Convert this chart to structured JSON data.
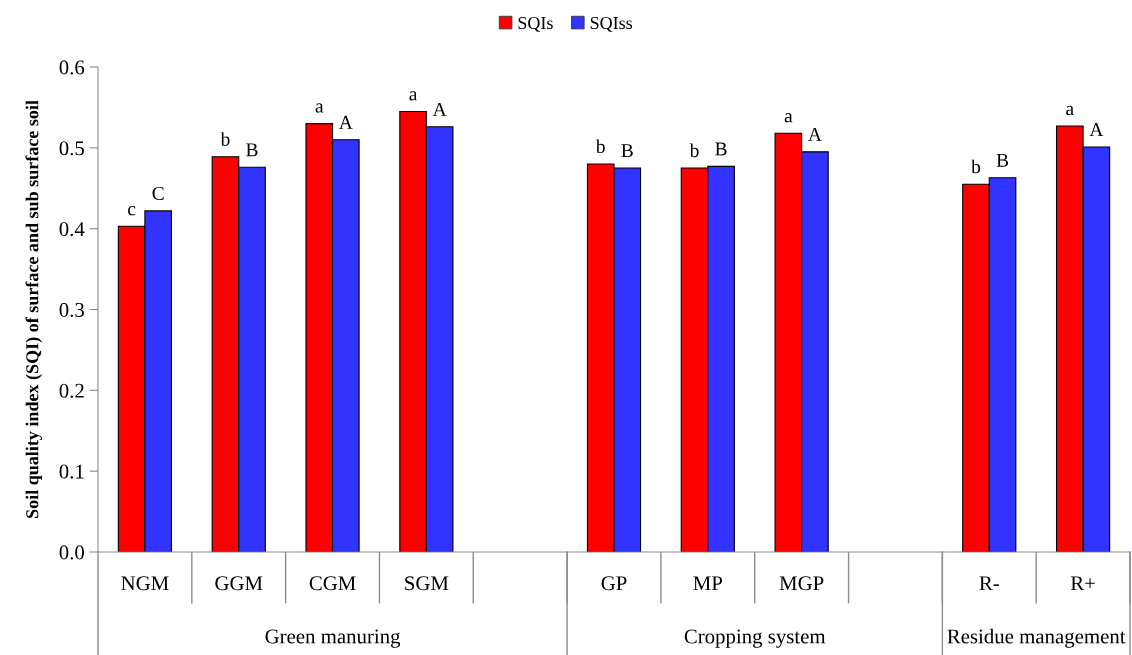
{
  "chart_data": {
    "type": "bar",
    "ylabel": "Soil quality index (SQI) of surface and sub surface soil",
    "categories": [
      "NGM",
      "GGM",
      "CGM",
      "SGM",
      null,
      "GP",
      "MP",
      "MGP",
      null,
      "R-",
      "R+"
    ],
    "series": [
      {
        "name": "SQIs",
        "color": "#ff0000",
        "values": [
          0.403,
          0.489,
          0.53,
          0.545,
          null,
          0.48,
          0.475,
          0.518,
          null,
          0.455,
          0.527
        ],
        "value_labels": [
          "c",
          "b",
          "a",
          "a",
          null,
          "b",
          "b",
          "a",
          null,
          "b",
          "a"
        ]
      },
      {
        "name": "SQIss",
        "color": "#3333ff",
        "values": [
          0.422,
          0.476,
          0.51,
          0.526,
          null,
          0.475,
          0.477,
          0.495,
          null,
          0.463,
          0.501
        ],
        "value_labels": [
          "C",
          "B",
          "A",
          "A",
          null,
          "B",
          "B",
          "A",
          null,
          "B",
          "A"
        ]
      }
    ],
    "ylim": [
      0,
      0.6
    ],
    "yticks": [
      {
        "value": 0,
        "label": "0.0"
      },
      0.1,
      0.2,
      0.3,
      0.4,
      0.5,
      0.6
    ],
    "legend": "top",
    "annotations": [
      "Green manuring",
      "Cropping system",
      "Residue management"
    ]
  }
}
